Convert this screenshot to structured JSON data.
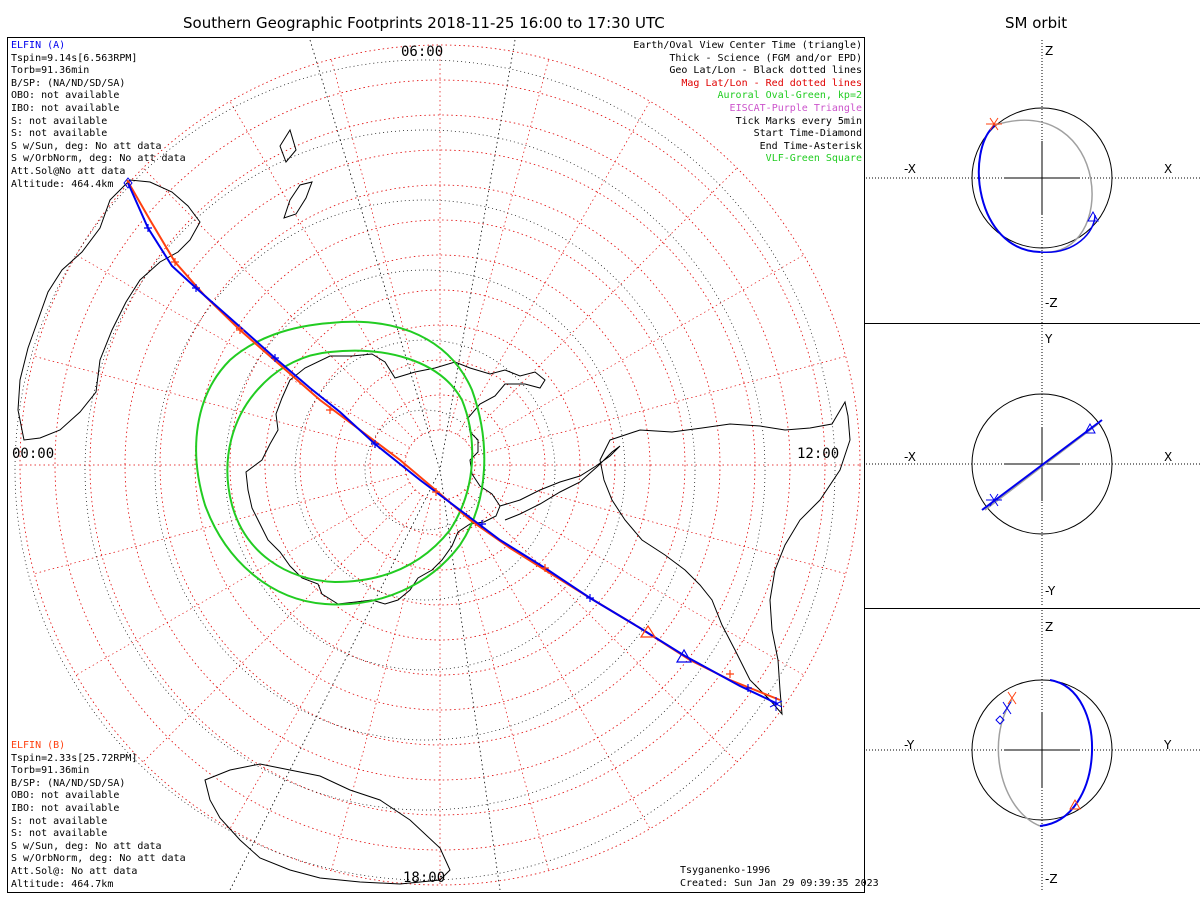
{
  "title": "Southern Geographic Footprints 2018-11-25 16:00 to 17:30 UTC",
  "orbit_title": "SM orbit",
  "clock": {
    "top": "06:00",
    "left": "00:00",
    "right": "12:00",
    "bottom": "18:00"
  },
  "elfin_a": {
    "name": "ELFIN (A)",
    "color": "#0000ee",
    "lines": [
      "Tspin=9.14s[6.563RPM]",
      "Torb=91.36min",
      "B/SP: (NA/ND/SD/SA)",
      "OBO: not available",
      "IBO: not available",
      "S: not available",
      "S: not available",
      "S w/Sun, deg: No att data",
      "S w/OrbNorm, deg: No att data",
      "Att.Sol@No att data",
      "Altitude: 464.4km"
    ]
  },
  "elfin_b": {
    "name": "ELFIN (B)",
    "color": "#ff4010",
    "lines": [
      "Tspin=2.33s[25.72RPM]",
      "Torb=91.36min",
      "B/SP: (NA/ND/SD/SA)",
      "OBO: not available",
      "IBO: not available",
      "S: not available",
      "S: not available",
      "S w/Sun, deg: No att data",
      "S w/OrbNorm, deg: No att data",
      "Att.Sol@: No att data",
      "Altitude: 464.7km"
    ]
  },
  "legend": [
    {
      "text": "Earth/Oval View Center Time (triangle)",
      "color": "#000000"
    },
    {
      "text": "Thick - Science (FGM and/or EPD)",
      "color": "#000000"
    },
    {
      "text": "Geo Lat/Lon - Black dotted lines",
      "color": "#000000"
    },
    {
      "text": "Mag Lat/Lon - Red dotted lines",
      "color": "#e00000"
    },
    {
      "text": "Auroral Oval-Green, kp=2",
      "color": "#22cc22"
    },
    {
      "text": "EISCAT-Purple Triangle",
      "color": "#cc55cc"
    },
    {
      "text": "Tick Marks every 5min",
      "color": "#000000"
    },
    {
      "text": "Start Time-Diamond",
      "color": "#000000"
    },
    {
      "text": "End Time-Asterisk",
      "color": "#000000"
    },
    {
      "text": "VLF-Green Square",
      "color": "#22cc22"
    }
  ],
  "credits": {
    "model": "Tsyganenko-1996",
    "created": "Created: Sun Jan 29 09:39:35 2023"
  },
  "orbit_panels": [
    {
      "name": "XZ",
      "left": "-X",
      "right": "X",
      "top": "Z",
      "bottom": "-Z"
    },
    {
      "name": "XY",
      "left": "-X",
      "right": "X",
      "top": "Y",
      "bottom": "-Y"
    },
    {
      "name": "YZ",
      "left": "-Y",
      "right": "Y",
      "top": "Z",
      "bottom": "-Z"
    }
  ],
  "colors": {
    "elfin_a": "#0000ee",
    "elfin_b": "#ff4010",
    "oval": "#22cc22",
    "mag_grid": "#e00000",
    "geo_grid": "#000000",
    "orbit_gray": "#a0a0a0"
  }
}
